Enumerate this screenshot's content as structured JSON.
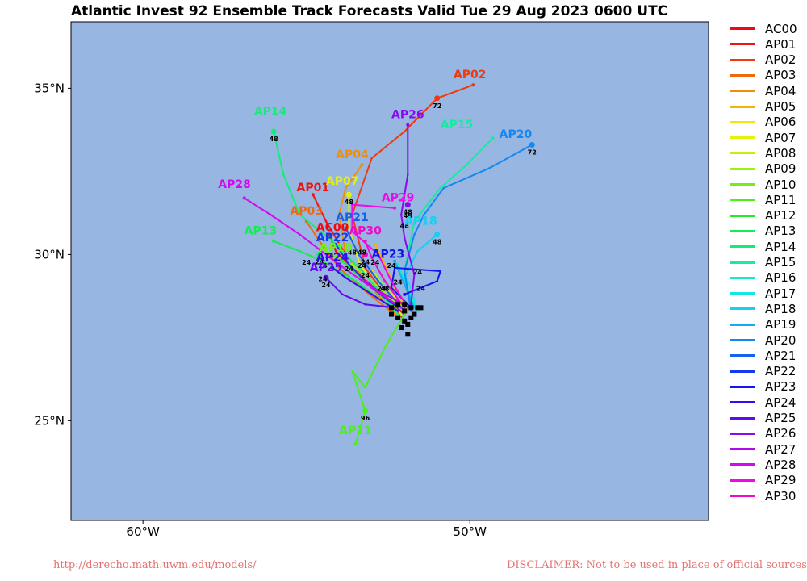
{
  "title": "Atlantic Invest 92 Ensemble Track Forecasts Valid Tue 29 Aug 2023 0600 UTC",
  "footer": {
    "left": "http://derecho.math.uwm.edu/models/",
    "right": "DISCLAIMER: Not to be used in place of official sources."
  },
  "map": {
    "ocean_color": "#98b6e2",
    "border_color": "#000000",
    "lon_range": [
      -62.2,
      -42.7
    ],
    "lat_range": [
      22.0,
      37.0
    ],
    "lat_labels": [
      {
        "lat": 35,
        "text": "35°N"
      },
      {
        "lat": 30,
        "text": "30°N"
      },
      {
        "lat": 25,
        "text": "25°N"
      }
    ],
    "lon_labels": [
      {
        "lon": -60,
        "text": "60°W"
      },
      {
        "lon": -50,
        "text": "50°W"
      }
    ]
  },
  "legend": [
    {
      "name": "AC00",
      "color": "#ee0a14"
    },
    {
      "name": "AP01",
      "color": "#ee1410"
    },
    {
      "name": "AP02",
      "color": "#ee3a0c"
    },
    {
      "name": "AP03",
      "color": "#ee6a0c"
    },
    {
      "name": "AP04",
      "color": "#ee8e0a"
    },
    {
      "name": "AP05",
      "color": "#f0b40a"
    },
    {
      "name": "AP06",
      "color": "#f0e60a"
    },
    {
      "name": "AP07",
      "color": "#e4f20a"
    },
    {
      "name": "AP08",
      "color": "#c4f00e"
    },
    {
      "name": "AP09",
      "color": "#9ef012"
    },
    {
      "name": "AP10",
      "color": "#72ee18"
    },
    {
      "name": "AP11",
      "color": "#4cee1c"
    },
    {
      "name": "AP12",
      "color": "#22ec2a"
    },
    {
      "name": "AP13",
      "color": "#14ec52"
    },
    {
      "name": "AP14",
      "color": "#14ec7a"
    },
    {
      "name": "AP15",
      "color": "#14eca0"
    },
    {
      "name": "AP16",
      "color": "#14ecc8"
    },
    {
      "name": "AP17",
      "color": "#14e6e6"
    },
    {
      "name": "AP18",
      "color": "#14d0f2"
    },
    {
      "name": "AP19",
      "color": "#14aaf2"
    },
    {
      "name": "AP20",
      "color": "#1488f2"
    },
    {
      "name": "AP21",
      "color": "#1462ee"
    },
    {
      "name": "AP22",
      "color": "#143aee"
    },
    {
      "name": "AP23",
      "color": "#1414ee"
    },
    {
      "name": "AP24",
      "color": "#3a0aee"
    },
    {
      "name": "AP25",
      "color": "#600aee"
    },
    {
      "name": "AP26",
      "color": "#880aee"
    },
    {
      "name": "AP27",
      "color": "#ae0aee"
    },
    {
      "name": "AP28",
      "color": "#d20aee"
    },
    {
      "name": "AP29",
      "color": "#ee0ae6"
    },
    {
      "name": "AP30",
      "color": "#ee0ac8"
    }
  ],
  "tracks": [
    {
      "name": "AC00",
      "show_label": true,
      "label_at": [
        -54.2,
        30.7
      ],
      "pts": [
        [
          -52.0,
          28.2
        ],
        [
          -52.8,
          28.9
        ],
        [
          -53.5,
          29.5
        ],
        [
          -54.1,
          30.1
        ],
        [
          -54.3,
          30.6
        ]
      ],
      "marks": []
    },
    {
      "name": "AP01",
      "show_label": true,
      "label_at": [
        -54.8,
        31.9
      ],
      "pts": [
        [
          -52.2,
          28.1
        ],
        [
          -53.0,
          29.0
        ],
        [
          -53.8,
          30.0
        ],
        [
          -54.4,
          31.0
        ],
        [
          -54.8,
          31.8
        ]
      ],
      "marks": []
    },
    {
      "name": "AP02",
      "show_label": true,
      "label_at": [
        -50.0,
        35.3
      ],
      "pts": [
        [
          -52.0,
          28.0
        ],
        [
          -53.2,
          29.6
        ],
        [
          -53.6,
          31.2
        ],
        [
          -53.0,
          32.9
        ],
        [
          -52.0,
          33.7
        ],
        [
          -51.0,
          34.7
        ],
        [
          -49.9,
          35.1
        ]
      ],
      "marks": [
        {
          "at": [
            -51.0,
            34.7
          ],
          "h": "72"
        }
      ]
    },
    {
      "name": "AP03",
      "show_label": true,
      "label_at": [
        -55.0,
        31.2
      ],
      "pts": [
        [
          -52.3,
          28.2
        ],
        [
          -53.2,
          28.9
        ],
        [
          -54.0,
          29.6
        ],
        [
          -54.6,
          30.4
        ],
        [
          -55.0,
          31.0
        ]
      ],
      "marks": []
    },
    {
      "name": "AP04",
      "show_label": true,
      "label_at": [
        -53.6,
        32.9
      ],
      "pts": [
        [
          -52.1,
          28.0
        ],
        [
          -53.0,
          29.0
        ],
        [
          -53.8,
          30.0
        ],
        [
          -54.0,
          31.2
        ],
        [
          -53.8,
          32.0
        ],
        [
          -53.3,
          32.7
        ]
      ],
      "marks": []
    },
    {
      "name": "AP05",
      "show_label": false,
      "label_at": [
        -52.5,
        30.2
      ],
      "pts": [
        [
          -51.9,
          28.3
        ],
        [
          -52.3,
          29.0
        ],
        [
          -52.6,
          29.7
        ],
        [
          -52.9,
          30.3
        ]
      ],
      "marks": []
    },
    {
      "name": "AP06",
      "show_label": false,
      "label_at": [
        -53.0,
        29.0
      ],
      "pts": [
        [
          -52.0,
          28.4
        ],
        [
          -52.6,
          29.0
        ],
        [
          -53.0,
          29.5
        ]
      ],
      "marks": []
    },
    {
      "name": "AP07",
      "show_label": true,
      "label_at": [
        -53.9,
        32.1
      ],
      "pts": [
        [
          -52.1,
          28.2
        ],
        [
          -52.9,
          29.0
        ],
        [
          -53.4,
          29.8
        ],
        [
          -53.7,
          30.8
        ],
        [
          -53.7,
          31.8
        ]
      ],
      "marks": [
        {
          "at": [
            -53.7,
            31.8
          ],
          "h": "48"
        }
      ]
    },
    {
      "name": "AP08",
      "show_label": false,
      "label_at": [
        -52.8,
        29.4
      ],
      "pts": [
        [
          -52.0,
          28.5
        ],
        [
          -52.6,
          29.0
        ],
        [
          -52.9,
          29.4
        ]
      ],
      "marks": []
    },
    {
      "name": "AP09",
      "show_label": false,
      "label_at": [
        -53.5,
        29.8
      ],
      "pts": [
        [
          -52.2,
          28.5
        ],
        [
          -53.0,
          29.2
        ],
        [
          -53.6,
          29.7
        ]
      ],
      "marks": []
    },
    {
      "name": "AP10",
      "show_label": true,
      "label_at": [
        -54.1,
        30.1
      ],
      "pts": [
        [
          -52.3,
          28.4
        ],
        [
          -53.2,
          29.2
        ],
        [
          -54.0,
          29.9
        ],
        [
          -54.6,
          30.2
        ]
      ],
      "marks": []
    },
    {
      "name": "AP11",
      "show_label": true,
      "label_at": [
        -53.5,
        24.6
      ],
      "pts": [
        [
          -52.0,
          28.2
        ],
        [
          -52.6,
          27.2
        ],
        [
          -53.2,
          26.0
        ],
        [
          -53.6,
          26.5
        ],
        [
          -53.2,
          25.3
        ],
        [
          -53.5,
          24.3
        ]
      ],
      "marks": [
        {
          "at": [
            -53.2,
            25.3
          ],
          "h": "96"
        }
      ]
    },
    {
      "name": "AP12",
      "show_label": false,
      "label_at": [
        -54.0,
        30.0
      ],
      "pts": [
        [
          -52.2,
          28.3
        ],
        [
          -53.1,
          29.1
        ],
        [
          -53.9,
          29.8
        ]
      ],
      "marks": []
    },
    {
      "name": "AP13",
      "show_label": true,
      "label_at": [
        -56.4,
        30.6
      ],
      "pts": [
        [
          -52.4,
          28.4
        ],
        [
          -53.5,
          29.2
        ],
        [
          -54.5,
          29.8
        ],
        [
          -55.2,
          30.1
        ],
        [
          -56.0,
          30.4
        ]
      ],
      "marks": [
        {
          "at": [
            -54.6,
            30.0
          ],
          "h": "24"
        }
      ]
    },
    {
      "name": "AP14",
      "show_label": true,
      "label_at": [
        -56.1,
        34.2
      ],
      "pts": [
        [
          -52.2,
          28.2
        ],
        [
          -53.2,
          29.4
        ],
        [
          -54.2,
          30.4
        ],
        [
          -55.2,
          31.2
        ],
        [
          -55.7,
          32.4
        ],
        [
          -56.0,
          33.7
        ]
      ],
      "marks": [
        {
          "at": [
            -56.0,
            33.7
          ],
          "h": "48"
        }
      ]
    },
    {
      "name": "AP15",
      "show_label": true,
      "label_at": [
        -50.4,
        33.8
      ],
      "pts": [
        [
          -51.8,
          28.4
        ],
        [
          -52.0,
          29.5
        ],
        [
          -51.7,
          31.0
        ],
        [
          -50.9,
          32.0
        ],
        [
          -50.1,
          32.7
        ],
        [
          -49.3,
          33.5
        ]
      ],
      "marks": []
    },
    {
      "name": "AP16",
      "show_label": false,
      "label_at": [
        -52.0,
        29.6
      ],
      "pts": [
        [
          -51.7,
          28.5
        ],
        [
          -52.0,
          29.2
        ],
        [
          -52.2,
          29.7
        ]
      ],
      "marks": []
    },
    {
      "name": "AP17",
      "show_label": false,
      "label_at": [
        -51.8,
        29.3
      ],
      "pts": [
        [
          -51.6,
          28.3
        ],
        [
          -51.8,
          29.0
        ],
        [
          -52.0,
          29.4
        ]
      ],
      "marks": []
    },
    {
      "name": "AP18",
      "show_label": true,
      "label_at": [
        -51.5,
        30.9
      ],
      "pts": [
        [
          -51.8,
          28.4
        ],
        [
          -52.0,
          29.3
        ],
        [
          -51.6,
          30.1
        ],
        [
          -51.0,
          30.6
        ]
      ],
      "marks": [
        {
          "at": [
            -51.0,
            30.6
          ],
          "h": "48"
        }
      ]
    },
    {
      "name": "AP19",
      "show_label": false,
      "label_at": [
        -52.2,
        29.8
      ],
      "pts": [
        [
          -51.7,
          28.4
        ],
        [
          -52.0,
          29.1
        ],
        [
          -52.3,
          29.8
        ]
      ],
      "marks": []
    },
    {
      "name": "AP20",
      "show_label": true,
      "label_at": [
        -48.6,
        33.5
      ],
      "pts": [
        [
          -51.8,
          28.3
        ],
        [
          -52.0,
          29.5
        ],
        [
          -51.7,
          30.6
        ],
        [
          -51.4,
          31.2
        ],
        [
          -50.8,
          32.0
        ],
        [
          -49.4,
          32.6
        ],
        [
          -48.1,
          33.3
        ]
      ],
      "marks": [
        {
          "at": [
            -48.1,
            33.3
          ],
          "h": "72"
        }
      ]
    },
    {
      "name": "AP21",
      "show_label": true,
      "label_at": [
        -53.6,
        31.0
      ],
      "pts": [
        [
          -52.0,
          28.3
        ],
        [
          -52.8,
          29.2
        ],
        [
          -53.4,
          30.0
        ],
        [
          -53.8,
          30.8
        ]
      ],
      "marks": []
    },
    {
      "name": "AP22",
      "show_label": true,
      "label_at": [
        -54.2,
        30.4
      ],
      "pts": [
        [
          -52.2,
          28.4
        ],
        [
          -53.0,
          29.0
        ],
        [
          -53.7,
          29.7
        ],
        [
          -54.1,
          30.3
        ]
      ],
      "marks": []
    },
    {
      "name": "AP23",
      "show_label": true,
      "label_at": [
        -52.5,
        29.9
      ],
      "pts": [
        [
          -51.8,
          28.4
        ],
        [
          -52.4,
          29.0
        ],
        [
          -52.3,
          29.6
        ],
        [
          -50.9,
          29.5
        ],
        [
          -51.0,
          29.2
        ],
        [
          -52.0,
          28.8
        ]
      ],
      "marks": []
    },
    {
      "name": "AP24",
      "show_label": true,
      "label_at": [
        -54.2,
        29.8
      ],
      "pts": [
        [
          -52.2,
          28.3
        ],
        [
          -53.0,
          28.8
        ],
        [
          -53.8,
          29.3
        ],
        [
          -54.2,
          29.6
        ]
      ],
      "marks": []
    },
    {
      "name": "AP25",
      "show_label": true,
      "label_at": [
        -54.4,
        29.5
      ],
      "pts": [
        [
          -52.3,
          28.4
        ],
        [
          -53.2,
          28.5
        ],
        [
          -53.9,
          28.8
        ],
        [
          -54.4,
          29.3
        ]
      ],
      "marks": [
        {
          "at": [
            -54.4,
            29.3
          ],
          "h": "24"
        }
      ]
    },
    {
      "name": "AP26",
      "show_label": true,
      "label_at": [
        -51.9,
        34.1
      ],
      "pts": [
        [
          -51.8,
          28.5
        ],
        [
          -51.7,
          29.4
        ],
        [
          -52.0,
          30.5
        ],
        [
          -52.1,
          31.2
        ],
        [
          -51.9,
          32.4
        ],
        [
          -51.9,
          33.9
        ]
      ],
      "marks": [
        {
          "at": [
            -51.9,
            31.5
          ],
          "h": "48"
        }
      ]
    },
    {
      "name": "AP27",
      "show_label": false,
      "label_at": [
        -53.0,
        29.1
      ],
      "pts": [
        [
          -52.0,
          28.5
        ],
        [
          -52.8,
          28.9
        ],
        [
          -53.2,
          29.2
        ]
      ],
      "marks": []
    },
    {
      "name": "AP28",
      "show_label": true,
      "label_at": [
        -57.2,
        32.0
      ],
      "pts": [
        [
          -52.1,
          28.4
        ],
        [
          -53.0,
          29.0
        ],
        [
          -54.0,
          29.7
        ],
        [
          -55.2,
          30.6
        ],
        [
          -56.1,
          31.2
        ],
        [
          -56.9,
          31.7
        ]
      ],
      "marks": []
    },
    {
      "name": "AP29",
      "show_label": true,
      "label_at": [
        -52.2,
        31.6
      ],
      "pts": [
        [
          -51.9,
          28.4
        ],
        [
          -52.4,
          29.2
        ],
        [
          -52.8,
          30.0
        ],
        [
          -53.6,
          30.7
        ],
        [
          -53.6,
          31.5
        ],
        [
          -52.3,
          31.4
        ]
      ],
      "marks": []
    },
    {
      "name": "AP30",
      "show_label": true,
      "label_at": [
        -53.2,
        30.6
      ],
      "pts": [
        [
          -52.0,
          28.4
        ],
        [
          -52.6,
          29.2
        ],
        [
          -53.0,
          29.9
        ],
        [
          -53.2,
          30.4
        ]
      ],
      "marks": [
        {
          "at": [
            -53.2,
            30.0
          ],
          "h": "24"
        }
      ]
    }
  ],
  "start_points": [
    [
      -52.4,
      28.4
    ],
    [
      -52.0,
      28.3
    ],
    [
      -51.8,
      28.4
    ],
    [
      -52.2,
      28.1
    ],
    [
      -52.0,
      28.0
    ],
    [
      -51.9,
      27.9
    ],
    [
      -52.1,
      27.8
    ],
    [
      -51.9,
      27.6
    ],
    [
      -52.4,
      28.2
    ],
    [
      -51.6,
      28.4
    ],
    [
      -51.7,
      28.2
    ],
    [
      -52.0,
      28.5
    ],
    [
      -51.5,
      28.4
    ],
    [
      -52.2,
      28.5
    ],
    [
      -51.8,
      28.1
    ]
  ],
  "hour_labels": [
    {
      "at": [
        -55.0,
        29.7
      ],
      "h": "24"
    },
    {
      "at": [
        -54.3,
        29.9
      ],
      "h": "24"
    },
    {
      "at": [
        -54.5,
        29.6
      ],
      "h": "24"
    },
    {
      "at": [
        -53.7,
        29.5
      ],
      "h": "24"
    },
    {
      "at": [
        -53.3,
        29.6
      ],
      "h": "24"
    },
    {
      "at": [
        -52.9,
        29.7
      ],
      "h": "24"
    },
    {
      "at": [
        -52.4,
        29.6
      ],
      "h": "24"
    },
    {
      "at": [
        -52.2,
        29.1
      ],
      "h": "24"
    },
    {
      "at": [
        -51.5,
        28.9
      ],
      "h": "24"
    },
    {
      "at": [
        -51.6,
        29.4
      ],
      "h": "24"
    },
    {
      "at": [
        -53.2,
        29.3
      ],
      "h": "24"
    },
    {
      "at": [
        -52.7,
        28.9
      ],
      "h": "24"
    },
    {
      "at": [
        -53.6,
        30.0
      ],
      "h": "48"
    },
    {
      "at": [
        -53.3,
        30.0
      ],
      "h": "48"
    },
    {
      "at": [
        -52.6,
        28.9
      ],
      "h": "48"
    },
    {
      "at": [
        -51.9,
        31.1
      ],
      "h": "48"
    },
    {
      "at": [
        -52.0,
        30.8
      ],
      "h": "48"
    },
    {
      "at": [
        -54.5,
        29.2
      ],
      "h": "24"
    }
  ]
}
